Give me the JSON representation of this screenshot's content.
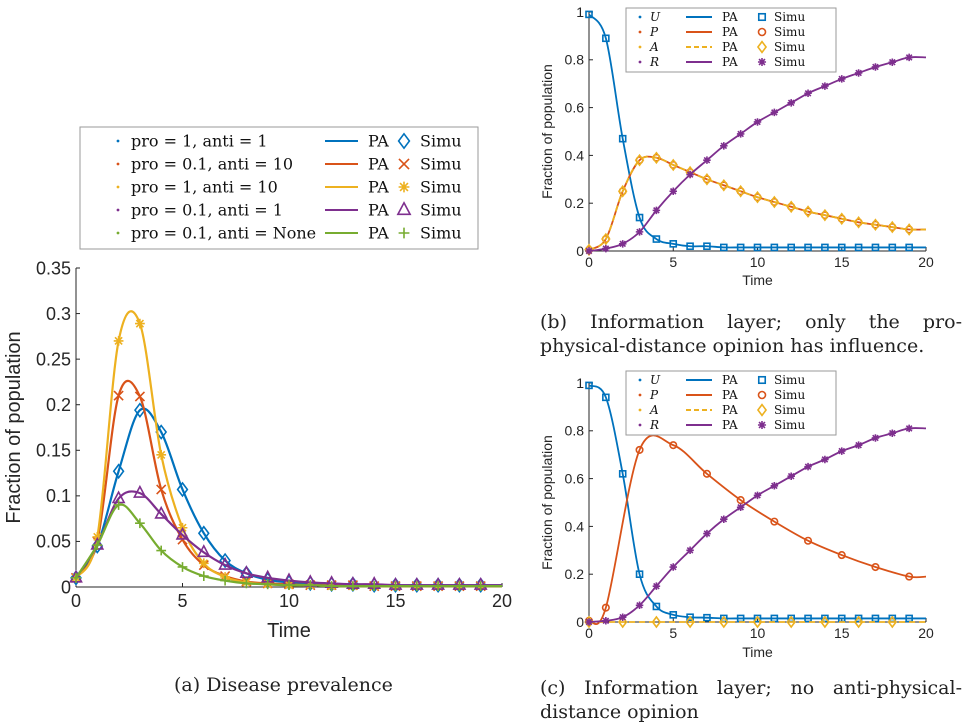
{
  "colors": {
    "blue": "#0072BD",
    "orange": "#D95319",
    "yellow": "#EDB120",
    "purple": "#7E2F8E",
    "green": "#77AC30"
  },
  "chart_data": [
    {
      "id": "a",
      "type": "line",
      "caption": "(a) Disease prevalence",
      "xlabel": "Time",
      "ylabel": "Fraction of population",
      "xlim": [
        0,
        20
      ],
      "ylim": [
        0,
        0.35
      ],
      "xticks": [
        "0",
        "5",
        "10",
        "15",
        "20"
      ],
      "yticks": [
        "0",
        "0.05",
        "0.1",
        "0.15",
        "0.2",
        "0.25",
        "0.3",
        "0.35"
      ],
      "legend_position": "above",
      "series": [
        {
          "name": "pro = 1, anti = 1",
          "color": "#0072BD",
          "marker": "diamond",
          "x": [
            0,
            1,
            2,
            3,
            4,
            5,
            6,
            7,
            8,
            9,
            10,
            11,
            12,
            13,
            14,
            15,
            16,
            17,
            18,
            19
          ],
          "y": [
            0.01,
            0.045,
            0.127,
            0.194,
            0.17,
            0.107,
            0.059,
            0.029,
            0.015,
            0.008,
            0.005,
            0.004,
            0.003,
            0.003,
            0.002,
            0.002,
            0.002,
            0.002,
            0.002,
            0.002
          ]
        },
        {
          "name": "pro = 0.1, anti = 10",
          "color": "#D95319",
          "marker": "x",
          "x": [
            0,
            1,
            2,
            3,
            4,
            5,
            6,
            7,
            8,
            9,
            10,
            11,
            12,
            13,
            14,
            15,
            16,
            17,
            18,
            19
          ],
          "y": [
            0.01,
            0.05,
            0.21,
            0.209,
            0.107,
            0.052,
            0.024,
            0.012,
            0.006,
            0.004,
            0.003,
            0.002,
            0.002,
            0.002,
            0.001,
            0.001,
            0.001,
            0.001,
            0.001,
            0.001
          ]
        },
        {
          "name": "pro = 1, anti = 10",
          "color": "#EDB120",
          "marker": "asterisk",
          "x": [
            0,
            1,
            2,
            3,
            4,
            5,
            6,
            7,
            8,
            9,
            10,
            11,
            12,
            13,
            14,
            15,
            16,
            17,
            18,
            19
          ],
          "y": [
            0.01,
            0.055,
            0.27,
            0.289,
            0.145,
            0.065,
            0.026,
            0.011,
            0.005,
            0.003,
            0.002,
            0.002,
            0.001,
            0.001,
            0.001,
            0.001,
            0.001,
            0.001,
            0.001,
            0.001
          ]
        },
        {
          "name": "pro = 0.1, anti = 1",
          "color": "#7E2F8E",
          "marker": "triangle",
          "x": [
            0,
            1,
            2,
            3,
            4,
            5,
            6,
            7,
            8,
            9,
            10,
            11,
            12,
            13,
            14,
            15,
            16,
            17,
            18,
            19
          ],
          "y": [
            0.01,
            0.046,
            0.097,
            0.103,
            0.08,
            0.057,
            0.038,
            0.024,
            0.015,
            0.01,
            0.007,
            0.005,
            0.004,
            0.003,
            0.003,
            0.002,
            0.002,
            0.002,
            0.002,
            0.002
          ]
        },
        {
          "name": "pro = 0.1, anti = None",
          "color": "#77AC30",
          "marker": "plus",
          "x": [
            0,
            1,
            2,
            3,
            4,
            5,
            6,
            7,
            8,
            9,
            10,
            11,
            12,
            13,
            14,
            15,
            16,
            17,
            18,
            19
          ],
          "y": [
            0.01,
            0.046,
            0.09,
            0.07,
            0.04,
            0.022,
            0.012,
            0.007,
            0.004,
            0.003,
            0.002,
            0.002,
            0.001,
            0.001,
            0.001,
            0.001,
            0.001,
            0.001,
            0.001,
            0.001
          ]
        }
      ],
      "legend_line_label": "PA",
      "legend_marker_label": "Simu"
    },
    {
      "id": "b",
      "type": "line",
      "caption": "(b) Information layer; only the pro-physical-distance opinion has influence.",
      "xlabel": "Time",
      "ylabel": "Fraction of population",
      "xlim": [
        0,
        20
      ],
      "ylim": [
        0,
        1
      ],
      "xticks": [
        "0",
        "5",
        "10",
        "15",
        "20"
      ],
      "yticks": [
        "0",
        "0.2",
        "0.4",
        "0.6",
        "0.8",
        "1"
      ],
      "legend_position": "top",
      "series": [
        {
          "name": "U",
          "color": "#0072BD",
          "marker": "square",
          "dashed": false,
          "x": [
            0,
            1,
            2,
            3,
            4,
            5,
            6,
            7,
            8,
            9,
            10,
            11,
            12,
            13,
            14,
            15,
            16,
            17,
            18,
            19
          ],
          "y": [
            0.99,
            0.89,
            0.47,
            0.14,
            0.05,
            0.03,
            0.02,
            0.02,
            0.015,
            0.015,
            0.015,
            0.015,
            0.015,
            0.015,
            0.015,
            0.015,
            0.015,
            0.015,
            0.015,
            0.015
          ]
        },
        {
          "name": "P",
          "color": "#D95319",
          "marker": "circle",
          "dashed": false,
          "x": [
            0,
            1,
            2,
            3,
            4,
            5,
            6,
            7,
            8,
            9,
            10,
            11,
            12,
            13,
            14,
            15,
            16,
            17,
            18,
            19
          ],
          "y": [
            0.005,
            0.05,
            0.25,
            0.38,
            0.39,
            0.36,
            0.33,
            0.3,
            0.275,
            0.25,
            0.225,
            0.205,
            0.185,
            0.165,
            0.15,
            0.135,
            0.12,
            0.11,
            0.1,
            0.09
          ]
        },
        {
          "name": "A",
          "color": "#EDB120",
          "marker": "diamond",
          "dashed": true,
          "x": [
            0,
            1,
            2,
            3,
            4,
            5,
            6,
            7,
            8,
            9,
            10,
            11,
            12,
            13,
            14,
            15,
            16,
            17,
            18,
            19
          ],
          "y": [
            0.005,
            0.05,
            0.25,
            0.38,
            0.39,
            0.36,
            0.33,
            0.3,
            0.275,
            0.25,
            0.225,
            0.205,
            0.185,
            0.165,
            0.15,
            0.135,
            0.12,
            0.11,
            0.1,
            0.09
          ]
        },
        {
          "name": "R",
          "color": "#7E2F8E",
          "marker": "asterisk",
          "dashed": false,
          "x": [
            0,
            1,
            2,
            3,
            4,
            5,
            6,
            7,
            8,
            9,
            10,
            11,
            12,
            13,
            14,
            15,
            16,
            17,
            18,
            19
          ],
          "y": [
            0.0,
            0.01,
            0.03,
            0.08,
            0.17,
            0.25,
            0.32,
            0.38,
            0.44,
            0.49,
            0.54,
            0.58,
            0.62,
            0.66,
            0.69,
            0.72,
            0.745,
            0.77,
            0.79,
            0.81
          ]
        }
      ],
      "legend_line_label": "PA",
      "legend_marker_label": "Simu"
    },
    {
      "id": "c",
      "type": "line",
      "caption": "(c) Information layer; no anti-physical-distance opinion",
      "xlabel": "Time",
      "ylabel": "Fraction of population",
      "xlim": [
        0,
        20
      ],
      "ylim": [
        0,
        1
      ],
      "xticks": [
        "0",
        "5",
        "10",
        "15",
        "20"
      ],
      "yticks": [
        "0",
        "0.2",
        "0.4",
        "0.6",
        "0.8",
        "1"
      ],
      "legend_position": "top",
      "series": [
        {
          "name": "U",
          "color": "#0072BD",
          "marker": "square",
          "dashed": false,
          "x": [
            0,
            1,
            2,
            3,
            4,
            5,
            6,
            7,
            8,
            9,
            10,
            11,
            12,
            13,
            14,
            15,
            16,
            17,
            18,
            19
          ],
          "y": [
            0.99,
            0.94,
            0.62,
            0.2,
            0.065,
            0.03,
            0.02,
            0.018,
            0.015,
            0.015,
            0.015,
            0.015,
            0.015,
            0.015,
            0.015,
            0.015,
            0.015,
            0.015,
            0.015,
            0.015
          ]
        },
        {
          "name": "P",
          "color": "#D95319",
          "marker": "circle",
          "dashed": false,
          "x": [
            0,
            1,
            3,
            5,
            7,
            9,
            11,
            13,
            15,
            17,
            19
          ],
          "y": [
            0.005,
            0.06,
            0.72,
            0.74,
            0.62,
            0.51,
            0.42,
            0.34,
            0.28,
            0.23,
            0.19
          ]
        },
        {
          "name": "A",
          "color": "#EDB120",
          "marker": "diamond",
          "dashed": true,
          "x": [
            0,
            2,
            4,
            6,
            8,
            10,
            12,
            14,
            16,
            18
          ],
          "y": [
            0,
            0,
            0,
            0,
            0,
            0,
            0,
            0,
            0,
            0
          ]
        },
        {
          "name": "R",
          "color": "#7E2F8E",
          "marker": "asterisk",
          "dashed": false,
          "x": [
            0,
            1,
            2,
            3,
            4,
            5,
            6,
            7,
            8,
            9,
            10,
            11,
            12,
            13,
            14,
            15,
            16,
            17,
            18,
            19
          ],
          "y": [
            0.0,
            0.005,
            0.02,
            0.07,
            0.15,
            0.23,
            0.3,
            0.37,
            0.43,
            0.48,
            0.53,
            0.57,
            0.61,
            0.65,
            0.68,
            0.715,
            0.74,
            0.77,
            0.79,
            0.81
          ]
        }
      ],
      "legend_line_label": "PA",
      "legend_marker_label": "Simu"
    }
  ]
}
